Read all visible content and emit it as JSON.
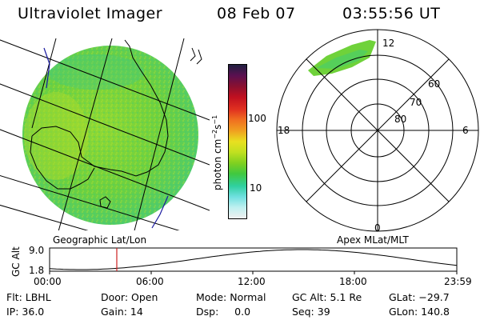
{
  "header": {
    "instrument": "Ultraviolet Imager",
    "date": "08 Feb 07",
    "time": "03:55:56 UT"
  },
  "colorbar": {
    "unit_label": "photon cm",
    "unit_exp1": "−2",
    "unit_s": "s",
    "unit_exp2": "−1",
    "ticks": [
      "100",
      "10"
    ],
    "colors": [
      "#202040",
      "#5a1050",
      "#8a1030",
      "#c01020",
      "#e03020",
      "#f07020",
      "#f0a020",
      "#e8e020",
      "#c0e020",
      "#80d020",
      "#40c840",
      "#30d0a0",
      "#70e0e0",
      "#c0f0f0",
      "#f0f0f0"
    ]
  },
  "polar": {
    "labels": {
      "top": "12",
      "left": "18",
      "right": "6",
      "bottom": "0"
    },
    "rings": [
      "60",
      "70",
      "80"
    ]
  },
  "map_label": "Geographic Lat/Lon",
  "polar_label": "Apex MLat/MLT",
  "orbit_plot": {
    "axis_label": "GC Alt",
    "y_top": "9.0",
    "y_bottom": "1.8",
    "x_ticks": [
      "00:00",
      "06:00",
      "12:00",
      "18:00",
      "23:59"
    ],
    "marker_time_fraction": 0.165,
    "colors": {
      "marker": "#cc2020",
      "curve": "#000000"
    }
  },
  "stats": {
    "flt": "Flt: LBHL",
    "ip": "IP: 36.0",
    "door": "Door: Open",
    "gain": "Gain: 14",
    "mode": "Mode: Normal",
    "dsp": "Dsp:     0.0",
    "gcalt": "GC Alt: 5.1 Re",
    "seq": "Seq: 39",
    "glat": "GLat: −29.7",
    "glon": "GLon: 140.8"
  },
  "colors": {
    "image_base": "#6fd23a",
    "image_bright": "#b8e030",
    "image_dim": "#3ccc7a"
  }
}
